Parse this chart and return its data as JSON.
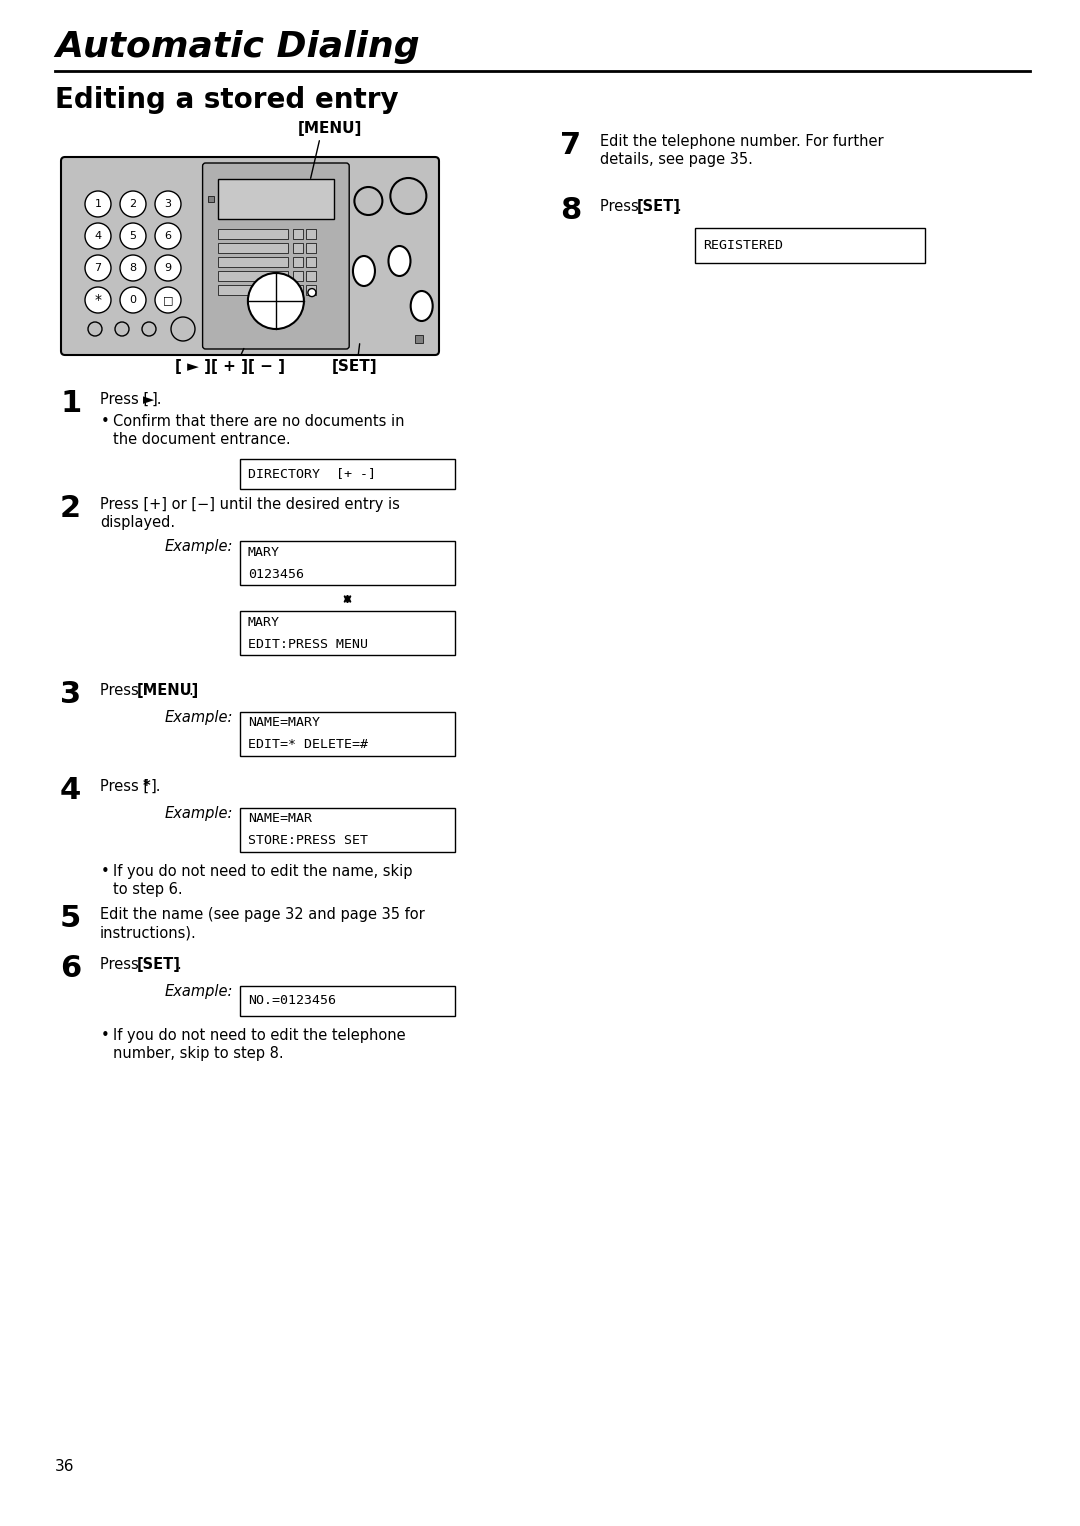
{
  "title_main": "Automatic Dialing",
  "title_section": "Editing a stored entry",
  "bg_color": "#ffffff",
  "text_color": "#000000",
  "page_number": "36",
  "menu_label": "[MENU]",
  "nav_label": "[►][+][−]",
  "set_label": "[SET]",
  "step1_text1": "Press [",
  "step1_arrow": "►",
  "step1_text2": "].",
  "step1_bullet": "Confirm that there are no documents in\nthe document entrance.",
  "step1_display": [
    "DIRECTORY  [+ -]"
  ],
  "step2_text": "Press [+] or [−] until the desired entry is\ndisplayed.",
  "step2_example": "Example:",
  "step2_display1": [
    "MARY",
    "0123456"
  ],
  "step2_display2": [
    "MARY",
    "EDIT:PRESS MENU"
  ],
  "step3_text_a": "Press ",
  "step3_text_b": "[MENU]",
  "step3_text_c": ".",
  "step3_example": "Example:",
  "step3_display": [
    "NAME=MARY",
    "EDIT=* DELETE=#"
  ],
  "step4_text_a": "Press [",
  "step4_text_b": "*",
  "step4_text_c": "].",
  "step4_example": "Example:",
  "step4_display": [
    "NAME=MAR",
    "STORE:PRESS SET"
  ],
  "step4_bullet": "If you do not need to edit the name, skip\nto step 6.",
  "step5_text": "Edit the name (see page 32 and page 35 for\ninstructions).",
  "step6_text_a": "Press ",
  "step6_text_b": "[SET]",
  "step6_text_c": ".",
  "step6_example": "Example:",
  "step6_display": [
    "NO.=0123456"
  ],
  "step6_bullet": "If you do not need to edit the telephone\nnumber, skip to step 8.",
  "step7_text": "Edit the telephone number. For further\ndetails, see page 35.",
  "step8_text_a": "Press ",
  "step8_text_b": "[SET]",
  "step8_text_c": ".",
  "step8_display": [
    "REGISTERED"
  ],
  "device_color": "#c0c0c0",
  "display_bg": "#d8d8d8"
}
